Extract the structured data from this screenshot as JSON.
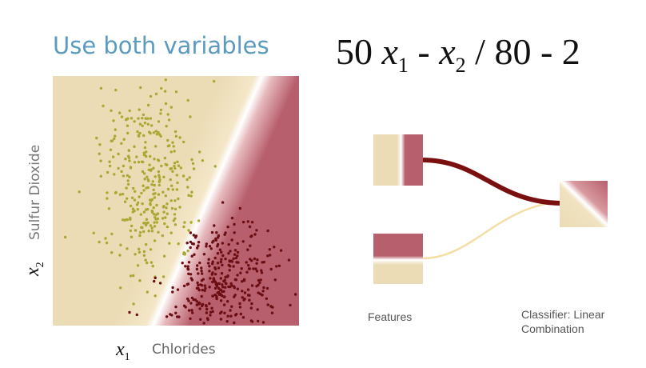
{
  "title": "Use both variables",
  "formula": {
    "coef1": "50",
    "var1": "x",
    "sub1": "1",
    "op1": "-",
    "var2": "x",
    "sub2": "2",
    "rest": "/ 80 - 2"
  },
  "axes": {
    "x_symbol": "x",
    "x_sub": "1",
    "x_name": "Chlorides",
    "y_symbol": "x",
    "y_sub": "2",
    "y_name": "Sulfur Dioxide"
  },
  "diagram": {
    "features_label": "Features",
    "classifier_label_line1": "Classifier: Linear",
    "classifier_label_line2": "Combination"
  },
  "colors": {
    "beige": "#ecdcb6",
    "maroon_region": "#b75f6c",
    "yellow_points": "#a8a832",
    "dark_points": "#6b0d12",
    "strong_edge": "#7a0f0f",
    "weak_edge": "#f3dfa6",
    "title_blue": "#5b9bbf"
  }
}
